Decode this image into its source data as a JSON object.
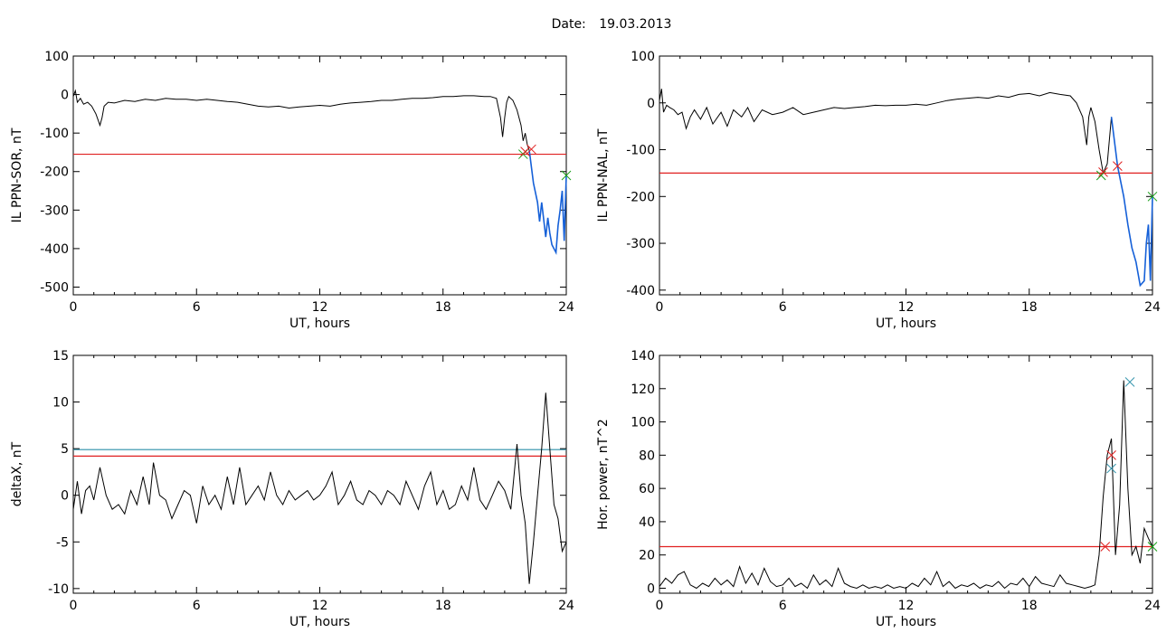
{
  "header": {
    "date_label": "Date:",
    "date_value": "19.03.2013"
  },
  "colors": {
    "signal": "#000000",
    "threshold": "#e02020",
    "threshold2": "#2a8fa8",
    "highlight": "#1560d8",
    "marker_green": "#1aa01a",
    "marker_red": "#e02020",
    "marker_blue": "#2a8fa8"
  },
  "chart_data": [
    {
      "type": "line",
      "xlabel": "UT, hours",
      "ylabel": "IL PPN-SOR, nT",
      "xlim": [
        0,
        24
      ],
      "ylim": [
        -520,
        100
      ],
      "xticks": [
        0,
        6,
        12,
        18,
        24
      ],
      "yticks": [
        100,
        0,
        -100,
        -200,
        -300,
        -400,
        -500
      ],
      "thresholds": [
        {
          "y": -155,
          "color": "red"
        }
      ],
      "series": [
        {
          "x": [
            0,
            0.1,
            0.2,
            0.35,
            0.5,
            0.7,
            0.9,
            1.1,
            1.3,
            1.4,
            1.5,
            1.7,
            2,
            2.5,
            3,
            3.5,
            4,
            4.5,
            5,
            5.5,
            6,
            6.5,
            7,
            7.5,
            8,
            8.5,
            9,
            9.5,
            10,
            10.5,
            11,
            11.5,
            12,
            12.5,
            13,
            13.5,
            14,
            14.5,
            15,
            15.5,
            16,
            16.5,
            17,
            17.5,
            18,
            18.5,
            19,
            19.5,
            20,
            20.3,
            20.6,
            20.8,
            20.9,
            21.0,
            21.1,
            21.2,
            21.4,
            21.6,
            21.8,
            21.9,
            22.0,
            22.1,
            22.2
          ],
          "y": [
            -5,
            10,
            -20,
            -10,
            -25,
            -20,
            -30,
            -50,
            -80,
            -60,
            -30,
            -20,
            -22,
            -15,
            -18,
            -12,
            -15,
            -10,
            -12,
            -12,
            -15,
            -12,
            -15,
            -18,
            -20,
            -25,
            -30,
            -32,
            -30,
            -35,
            -32,
            -30,
            -28,
            -30,
            -25,
            -22,
            -20,
            -18,
            -15,
            -15,
            -12,
            -10,
            -10,
            -8,
            -5,
            -5,
            -3,
            -3,
            -5,
            -5,
            -10,
            -60,
            -110,
            -60,
            -20,
            -5,
            -15,
            -40,
            -80,
            -120,
            -100,
            -130,
            -145
          ]
        },
        {
          "name": "",
          "x": [
            22.2,
            22.4,
            22.6,
            22.7,
            22.8,
            23.0,
            23.1,
            23.2,
            23.3,
            23.5,
            23.6,
            23.7,
            23.8,
            23.9,
            24.0
          ],
          "y": [
            -145,
            -230,
            -280,
            -330,
            -280,
            -370,
            -320,
            -360,
            -390,
            -410,
            -340,
            -300,
            -250,
            -380,
            -210
          ]
        }
      ],
      "markers": [
        {
          "x": 21.9,
          "y": -155,
          "color": "green"
        },
        {
          "x": 22.0,
          "y": -148,
          "color": "red"
        },
        {
          "x": 22.3,
          "y": -142,
          "color": "red"
        },
        {
          "x": 24.0,
          "y": -210,
          "color": "green"
        }
      ]
    },
    {
      "type": "line",
      "xlabel": "UT, hours",
      "ylabel": "IL PPN-NAL, nT",
      "xlim": [
        0,
        24
      ],
      "ylim": [
        -410,
        100
      ],
      "xticks": [
        0,
        6,
        12,
        18,
        24
      ],
      "yticks": [
        100,
        0,
        -100,
        -200,
        -300,
        -400
      ],
      "thresholds": [
        {
          "y": -150,
          "color": "red"
        }
      ],
      "series": [
        {
          "x": [
            0,
            0.1,
            0.2,
            0.35,
            0.5,
            0.7,
            0.9,
            1.1,
            1.3,
            1.5,
            1.7,
            2,
            2.3,
            2.6,
            3,
            3.3,
            3.6,
            4,
            4.3,
            4.6,
            5,
            5.5,
            6,
            6.5,
            7,
            7.5,
            8,
            8.5,
            9,
            9.5,
            10,
            10.5,
            11,
            11.5,
            12,
            12.5,
            13,
            13.5,
            14,
            14.5,
            15,
            15.5,
            16,
            16.5,
            17,
            17.5,
            18,
            18.5,
            19,
            19.5,
            20,
            20.3,
            20.6,
            20.8,
            20.9,
            21.0,
            21.2,
            21.4,
            21.6,
            21.8,
            22.0
          ],
          "y": [
            5,
            30,
            -20,
            -5,
            -10,
            -15,
            -25,
            -20,
            -55,
            -30,
            -15,
            -35,
            -10,
            -45,
            -20,
            -50,
            -15,
            -30,
            -10,
            -40,
            -15,
            -25,
            -20,
            -10,
            -25,
            -20,
            -15,
            -10,
            -12,
            -10,
            -8,
            -5,
            -6,
            -5,
            -5,
            -3,
            -5,
            0,
            5,
            8,
            10,
            12,
            10,
            15,
            12,
            18,
            20,
            15,
            22,
            18,
            15,
            0,
            -30,
            -90,
            -30,
            -10,
            -40,
            -100,
            -150,
            -130,
            -30
          ]
        },
        {
          "name": "",
          "x": [
            22.0,
            22.3,
            22.6,
            22.8,
            23.0,
            23.2,
            23.4,
            23.6,
            23.7,
            23.8,
            23.9,
            24.0
          ],
          "y": [
            -30,
            -135,
            -200,
            -260,
            -310,
            -340,
            -390,
            -380,
            -300,
            -260,
            -380,
            -200
          ]
        }
      ],
      "markers": [
        {
          "x": 21.5,
          "y": -155,
          "color": "green"
        },
        {
          "x": 21.6,
          "y": -148,
          "color": "red"
        },
        {
          "x": 22.3,
          "y": -135,
          "color": "red"
        },
        {
          "x": 24.0,
          "y": -200,
          "color": "green"
        }
      ]
    },
    {
      "type": "line",
      "xlabel": "UT, hours",
      "ylabel": "deltaX, nT",
      "xlim": [
        0,
        24
      ],
      "ylim": [
        -10.5,
        15
      ],
      "xticks": [
        0,
        6,
        12,
        18,
        24
      ],
      "yticks": [
        15,
        10,
        5,
        0,
        -5,
        -10
      ],
      "thresholds": [
        {
          "y": 4.9,
          "color": "blue"
        },
        {
          "y": 4.2,
          "color": "red"
        }
      ],
      "series": [
        {
          "x": [
            0,
            0.2,
            0.4,
            0.6,
            0.8,
            1.0,
            1.3,
            1.6,
            1.9,
            2.2,
            2.5,
            2.8,
            3.1,
            3.4,
            3.7,
            3.9,
            4.2,
            4.5,
            4.8,
            5.1,
            5.4,
            5.7,
            6.0,
            6.3,
            6.6,
            6.9,
            7.2,
            7.5,
            7.8,
            8.1,
            8.4,
            8.7,
            9.0,
            9.3,
            9.6,
            9.9,
            10.2,
            10.5,
            10.8,
            11.1,
            11.4,
            11.7,
            12.0,
            12.3,
            12.6,
            12.9,
            13.2,
            13.5,
            13.8,
            14.1,
            14.4,
            14.7,
            15.0,
            15.3,
            15.6,
            15.9,
            16.2,
            16.5,
            16.8,
            17.1,
            17.4,
            17.7,
            18.0,
            18.3,
            18.6,
            18.9,
            19.2,
            19.5,
            19.8,
            20.1,
            20.4,
            20.7,
            21.0,
            21.3,
            21.6,
            21.8,
            22.0,
            22.2,
            22.4,
            22.6,
            22.8,
            23.0,
            23.2,
            23.4,
            23.6,
            23.8,
            24.0
          ],
          "y": [
            -1.5,
            1.5,
            -2,
            0.5,
            1,
            -0.5,
            3,
            0,
            -1.5,
            -1,
            -2,
            0.5,
            -1,
            2,
            -1,
            3.5,
            0,
            -0.5,
            -2.5,
            -1,
            0.5,
            0,
            -3,
            1,
            -1,
            0,
            -1.5,
            2,
            -1,
            3,
            -1,
            0,
            1,
            -0.5,
            2.5,
            0,
            -1,
            0.5,
            -0.5,
            0,
            0.5,
            -0.5,
            0,
            1,
            2.5,
            -1,
            0,
            1.5,
            -0.5,
            -1,
            0.5,
            0,
            -1,
            0.5,
            0,
            -1,
            1.5,
            0,
            -1.5,
            1,
            2.5,
            -1,
            0.5,
            -1.5,
            -1,
            1,
            -0.5,
            3,
            -0.5,
            -1.5,
            0,
            1.5,
            0.5,
            -1.5,
            5.5,
            0,
            -3,
            -9.5,
            -5,
            0,
            5,
            11,
            5,
            -1,
            -2.5,
            -6,
            -5
          ]
        }
      ],
      "markers": []
    },
    {
      "type": "line",
      "xlabel": "UT, hours",
      "ylabel": "Hor. power, nT^2",
      "xlim": [
        0,
        24
      ],
      "ylim": [
        -3,
        140
      ],
      "xticks": [
        0,
        6,
        12,
        18,
        24
      ],
      "yticks": [
        140,
        120,
        100,
        80,
        60,
        40,
        20,
        0
      ],
      "thresholds": [
        {
          "y": 25,
          "color": "red"
        }
      ],
      "series": [
        {
          "x": [
            0,
            0.3,
            0.6,
            0.9,
            1.2,
            1.5,
            1.8,
            2.1,
            2.4,
            2.7,
            3.0,
            3.3,
            3.6,
            3.9,
            4.2,
            4.5,
            4.8,
            5.1,
            5.4,
            5.7,
            6.0,
            6.3,
            6.6,
            6.9,
            7.2,
            7.5,
            7.8,
            8.1,
            8.4,
            8.7,
            9.0,
            9.3,
            9.6,
            9.9,
            10.2,
            10.5,
            10.8,
            11.1,
            11.4,
            11.7,
            12.0,
            12.3,
            12.6,
            12.9,
            13.2,
            13.5,
            13.8,
            14.1,
            14.4,
            14.7,
            15.0,
            15.3,
            15.6,
            15.9,
            16.2,
            16.5,
            16.8,
            17.1,
            17.4,
            17.7,
            18.0,
            18.3,
            18.6,
            18.9,
            19.2,
            19.5,
            19.8,
            20.1,
            20.4,
            20.7,
            21.0,
            21.2,
            21.4,
            21.6,
            21.8,
            22.0,
            22.2,
            22.4,
            22.6,
            22.8,
            23.0,
            23.2,
            23.4,
            23.6,
            23.8,
            24.0
          ],
          "y": [
            1,
            6,
            3,
            8,
            10,
            2,
            0,
            3,
            1,
            6,
            2,
            5,
            1,
            13,
            3,
            9,
            2,
            12,
            4,
            1,
            2,
            6,
            1,
            3,
            0,
            8,
            2,
            5,
            1,
            12,
            3,
            1,
            0,
            2,
            0,
            1,
            0,
            2,
            0,
            1,
            0,
            3,
            1,
            6,
            2,
            10,
            1,
            4,
            0,
            2,
            1,
            3,
            0,
            2,
            1,
            4,
            0,
            3,
            2,
            6,
            1,
            7,
            3,
            2,
            1,
            8,
            3,
            2,
            1,
            0,
            1,
            2,
            20,
            55,
            80,
            90,
            20,
            50,
            125,
            60,
            20,
            25,
            15,
            36,
            30,
            25
          ]
        }
      ],
      "markers": [
        {
          "x": 21.7,
          "y": 25,
          "color": "red"
        },
        {
          "x": 22.0,
          "y": 72,
          "color": "blue"
        },
        {
          "x": 22.0,
          "y": 80,
          "color": "red"
        },
        {
          "x": 22.9,
          "y": 124,
          "color": "blue"
        },
        {
          "x": 24.0,
          "y": 25,
          "color": "green"
        }
      ]
    }
  ]
}
